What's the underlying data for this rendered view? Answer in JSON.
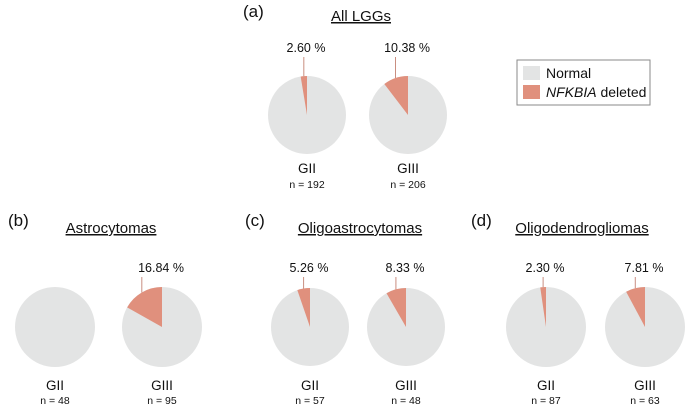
{
  "colors": {
    "normal": "#e3e4e4",
    "deleted": "#e0907d",
    "leader": "#c98e80",
    "legend_border": "#8a8a8a"
  },
  "legend": {
    "normal_label": "Normal",
    "deleted_label_italic": "NFKBIA",
    "deleted_label_rest": " deleted"
  },
  "chart_data": [
    {
      "type": "pie",
      "panel": "(a)",
      "title": "All LGGs",
      "pies": [
        {
          "grade": "GII",
          "n_label": "n = 192",
          "deleted_pct": 2.6,
          "pct_label": "2.60 %"
        },
        {
          "grade": "GIII",
          "n_label": "n = 206",
          "deleted_pct": 10.38,
          "pct_label": "10.38 %"
        }
      ]
    },
    {
      "type": "pie",
      "panel": "(b)",
      "title": "Astrocytomas",
      "pies": [
        {
          "grade": "GII",
          "n_label": "n = 48",
          "deleted_pct": 0,
          "pct_label": ""
        },
        {
          "grade": "GIII",
          "n_label": "n = 95",
          "deleted_pct": 16.84,
          "pct_label": "16.84 %"
        }
      ]
    },
    {
      "type": "pie",
      "panel": "(c)",
      "title": "Oligoastrocytomas",
      "pies": [
        {
          "grade": "GII",
          "n_label": "n = 57",
          "deleted_pct": 5.26,
          "pct_label": "5.26 %"
        },
        {
          "grade": "GIII",
          "n_label": "n = 48",
          "deleted_pct": 8.33,
          "pct_label": "8.33 %"
        }
      ]
    },
    {
      "type": "pie",
      "panel": "(d)",
      "title": "Oligodendrogliomas",
      "pies": [
        {
          "grade": "GII",
          "n_label": "n = 87",
          "deleted_pct": 2.3,
          "pct_label": "2.30 %"
        },
        {
          "grade": "GIII",
          "n_label": "n = 63",
          "deleted_pct": 7.81,
          "pct_label": "7.81 %"
        }
      ]
    }
  ]
}
